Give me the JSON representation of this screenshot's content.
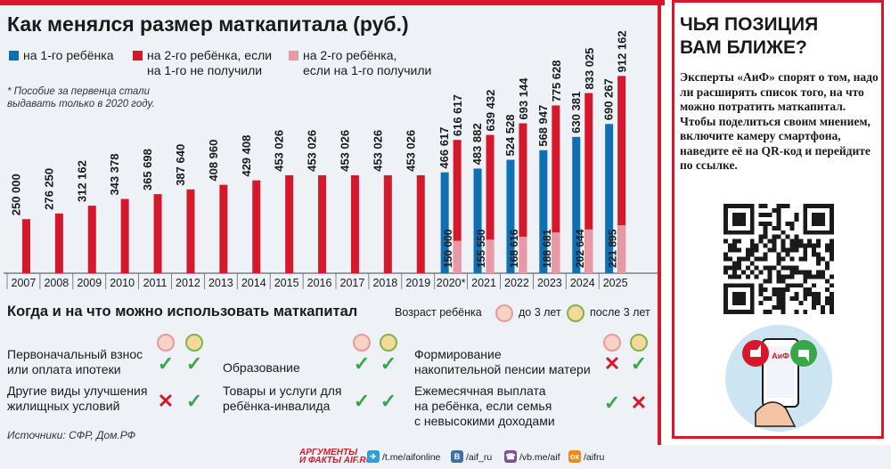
{
  "title": "Как менялся размер маткапитала (руб.)",
  "legend": {
    "first": "на 1-го ребёнка",
    "second_l1": "на 2-го ребёнка, если",
    "second_l2": "на 1-го не получили",
    "second_only_l1": "на 2-го ребёнка,",
    "second_only_l2": "если на 1-го получили"
  },
  "footnote_l1": "* Пособие за первенца стали",
  "footnote_l2": "выдавать только в 2020 году.",
  "colors": {
    "red": "#d6182c",
    "blue": "#0f6fb4",
    "pink": "#e899a6",
    "green": "#3aa64a"
  },
  "chart_data": {
    "type": "bar",
    "categories": [
      "2007",
      "2008",
      "2009",
      "2010",
      "2011",
      "2012",
      "2013",
      "2014",
      "2015",
      "2016",
      "2017",
      "2018",
      "2019",
      "2020*",
      "2021",
      "2022",
      "2023",
      "2024",
      "2025"
    ],
    "series": [
      {
        "name": "на 1-го ребёнка",
        "values": [
          null,
          null,
          null,
          null,
          null,
          null,
          null,
          null,
          null,
          null,
          null,
          null,
          null,
          466617,
          483882,
          524528,
          568947,
          630381,
          690267
        ],
        "labels": [
          "",
          "",
          "",
          "",
          "",
          "",
          "",
          "",
          "",
          "",
          "",
          "",
          "",
          "466 617",
          "483 882",
          "524 528",
          "568 947",
          "630 381",
          "690 267"
        ]
      },
      {
        "name": "на 2-го ребёнка, если на 1-го не получили",
        "values": [
          250000,
          276250,
          312162,
          343378,
          365698,
          387640,
          408960,
          429408,
          453026,
          453026,
          453026,
          453026,
          453026,
          616617,
          639432,
          693144,
          775628,
          833025,
          912162
        ],
        "labels": [
          "250 000",
          "276 250",
          "312 162",
          "343 378",
          "365 698",
          "387 640",
          "408 960",
          "429 408",
          "453 026",
          "453 026",
          "453 026",
          "453 026",
          "453 026",
          "616 617",
          "639 432",
          "693 144",
          "775 628",
          "833 025",
          "912 162"
        ]
      },
      {
        "name": "на 2-го ребёнка, если на 1-го получили",
        "values": [
          null,
          null,
          null,
          null,
          null,
          null,
          null,
          null,
          null,
          null,
          null,
          null,
          null,
          150000,
          155550,
          168616,
          188681,
          202644,
          221895
        ],
        "labels": [
          "",
          "",
          "",
          "",
          "",
          "",
          "",
          "",
          "",
          "",
          "",
          "",
          "",
          "150 000",
          "155 550",
          "168 616",
          "188 681",
          "202 644",
          "221 895"
        ]
      }
    ]
  },
  "uses": {
    "title": "Когда и на что можно использовать маткапитал",
    "age_label": "Возраст ребёнка",
    "under3": "до 3 лет",
    "over3": "после 3 лет",
    "items": [
      {
        "l1": "Первоначальный взнос",
        "l2": "или оплата ипотеки",
        "l3": "",
        "a": "check",
        "b": "check"
      },
      {
        "l1": "Другие виды улучшения",
        "l2": "жилищных условий",
        "l3": "",
        "a": "cross",
        "b": "check"
      },
      {
        "l1": "Образование",
        "l2": "",
        "l3": "",
        "a": "check",
        "b": "check"
      },
      {
        "l1": "Товары и услуги для",
        "l2": "ребёнка-инвалида",
        "l3": "",
        "a": "check",
        "b": "check"
      },
      {
        "l1": "Формирование",
        "l2": "накопительной пенсии матери",
        "l3": "",
        "a": "cross",
        "b": "check"
      },
      {
        "l1": "Ежемесячная выплата",
        "l2": "на ребёнка, если семья",
        "l3": "с невысокими доходами",
        "a": "check",
        "b": "cross"
      }
    ],
    "check_glyph": "✓",
    "cross_glyph": "✕"
  },
  "sources": "Источники: СФР, Дом.РФ",
  "side": {
    "title_l1": "ЧЬЯ ПОЗИЦИЯ",
    "title_l2": "ВАМ БЛИЖЕ?",
    "text": "Эксперты «АиФ» спорят о том, надо ли расширять список того, на что можно потратить маткапитал. Чтобы поделиться своим мнением, включите камеру смартфона, наведите её на QR-код и перейдите по ссылке."
  },
  "footer": {
    "brand_l1": "АРГУМЕНТЫ",
    "brand_l2": "И ФАКТЫ AIF.RU",
    "tg": "/t.me/aifonline",
    "vk": "/aif_ru",
    "viber": "/vb.me/aif",
    "ok": "/aifru"
  }
}
